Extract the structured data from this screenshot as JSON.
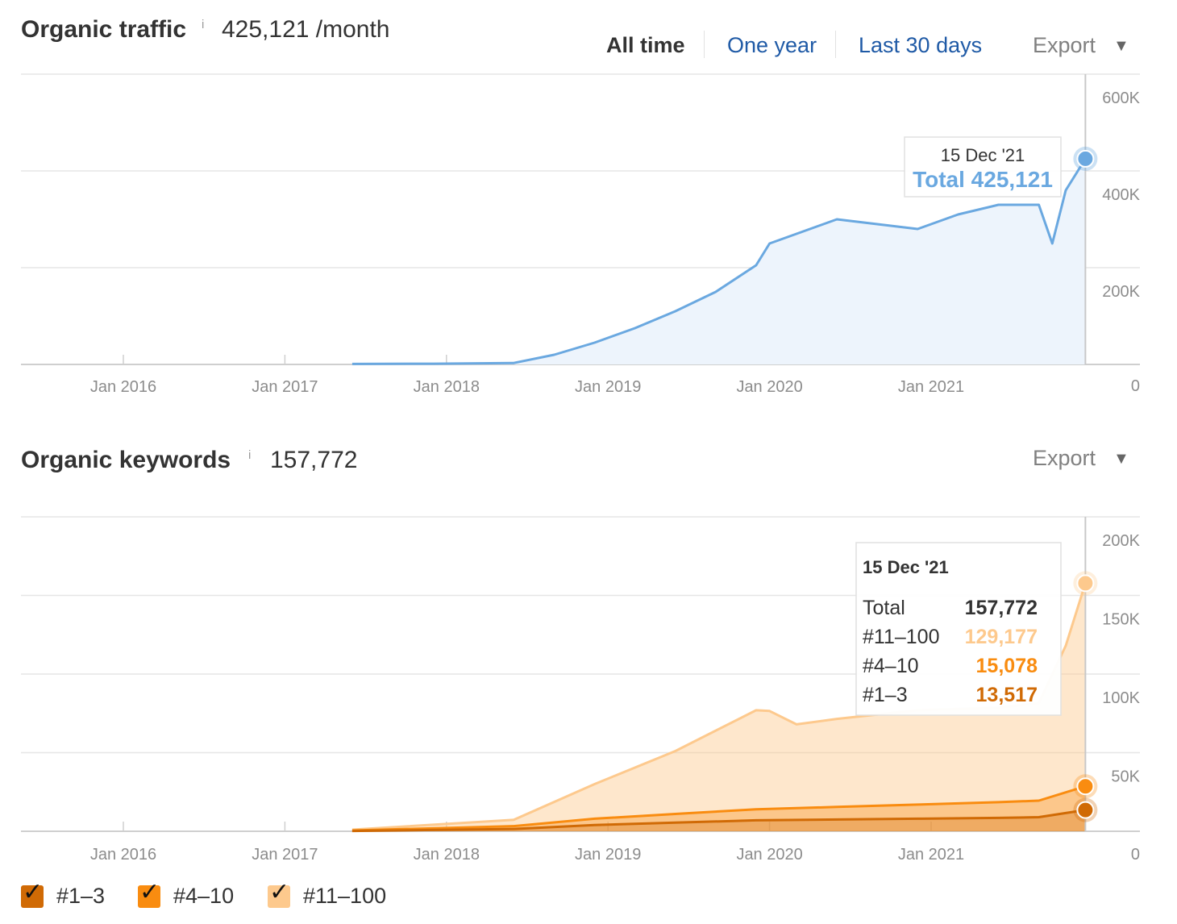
{
  "traffic": {
    "title": "Organic traffic",
    "info_mark": "i",
    "value": "425,121 /month",
    "ranges": [
      "All time",
      "One year",
      "Last 30 days"
    ],
    "active_range": "All time",
    "export_label": "Export",
    "tooltip": {
      "date": "15 Dec '21",
      "total_label": "Total 425,121"
    }
  },
  "keywords": {
    "title": "Organic keywords",
    "info_mark": "i",
    "value": "157,772",
    "export_label": "Export",
    "tooltip": {
      "date": "15 Dec '21",
      "rows": [
        {
          "label": "Total",
          "value": "157,772"
        },
        {
          "label": "#11–100",
          "value": "129,177"
        },
        {
          "label": "#4–10",
          "value": "15,078"
        },
        {
          "label": "#1–3",
          "value": "13,517"
        }
      ]
    }
  },
  "legend": [
    {
      "label": "#1–3",
      "checked": true,
      "color": "#d06a05"
    },
    {
      "label": "#4–10",
      "checked": true,
      "color": "#f98c10"
    },
    {
      "label": "#11–100",
      "checked": true,
      "color": "#fdc98d"
    }
  ],
  "colors": {
    "traffic_line": "#6aa8e0",
    "traffic_fill": "#edf4fc",
    "kw_top3": "#d06a05",
    "kw_4_10": "#f98c10",
    "kw_11_100": "#fdc98d",
    "grid": "#e6e6e6",
    "link": "#1f5aa6"
  },
  "chart_data": [
    {
      "type": "area",
      "title": "Organic traffic",
      "x_tick_labels": [
        "Jan 2016",
        "Jan 2017",
        "Jan 2018",
        "Jan 2019",
        "Jan 2020",
        "Jan 2021"
      ],
      "y_tick_labels": [
        "600K",
        "400K",
        "200K",
        "0"
      ],
      "ylim": [
        0,
        600000
      ],
      "xlim": [
        "2015-05",
        "2022-01"
      ],
      "grid": true,
      "series": [
        {
          "x": [
            "2017-06",
            "2017-12",
            "2018-06",
            "2018-09",
            "2018-12",
            "2019-03",
            "2019-06",
            "2019-09",
            "2019-12",
            "2020-01",
            "2020-03",
            "2020-06",
            "2020-09",
            "2020-12",
            "2021-03",
            "2021-06",
            "2021-09",
            "2021-10",
            "2021-11",
            "2021-12-15"
          ],
          "values": [
            1000,
            1500,
            3000,
            20000,
            45000,
            75000,
            110000,
            150000,
            205000,
            250000,
            270000,
            300000,
            290000,
            280000,
            310000,
            330000,
            330000,
            250000,
            360000,
            425121
          ]
        }
      ],
      "highlight": {
        "x": "2021-12-15",
        "y": 425121
      }
    },
    {
      "type": "area",
      "title": "Organic keywords",
      "x_tick_labels": [
        "Jan 2016",
        "Jan 2017",
        "Jan 2018",
        "Jan 2019",
        "Jan 2020",
        "Jan 2021"
      ],
      "y_tick_labels": [
        "200K",
        "150K",
        "100K",
        "50K",
        "0"
      ],
      "ylim": [
        0,
        200000
      ],
      "xlim": [
        "2015-05",
        "2022-01"
      ],
      "stacked": true,
      "grid": true,
      "series": [
        {
          "name": "#1–3",
          "x": [
            "2017-06",
            "2018-06",
            "2018-12",
            "2019-06",
            "2019-12",
            "2020-06",
            "2020-12",
            "2021-06",
            "2021-09",
            "2021-12-15"
          ],
          "values": [
            200,
            1500,
            4000,
            5500,
            7000,
            7500,
            8000,
            8500,
            9000,
            13517
          ]
        },
        {
          "name": "#4–10",
          "x": [
            "2017-06",
            "2018-06",
            "2018-12",
            "2019-06",
            "2019-12",
            "2020-06",
            "2020-12",
            "2021-06",
            "2021-09",
            "2021-12-15"
          ],
          "values": [
            300,
            1800,
            4000,
            5500,
            7000,
            8000,
            9000,
            10000,
            10500,
            15078
          ]
        },
        {
          "name": "#11–100",
          "x": [
            "2017-06",
            "2018-06",
            "2018-12",
            "2019-06",
            "2019-12",
            "2020-01",
            "2020-03",
            "2020-06",
            "2020-12",
            "2021-06",
            "2021-09",
            "2021-11",
            "2021-12-15"
          ],
          "values": [
            500,
            4000,
            22000,
            40000,
            63000,
            62000,
            53000,
            56000,
            60000,
            60000,
            62000,
            95000,
            129177
          ]
        }
      ],
      "totals": {
        "x": [
          "2017-06",
          "2018-06",
          "2018-12",
          "2019-06",
          "2019-12",
          "2020-01",
          "2020-03",
          "2020-06",
          "2020-12",
          "2021-06",
          "2021-09",
          "2021-11",
          "2021-12-15"
        ],
        "values": [
          1000,
          7300,
          30000,
          51000,
          77000,
          76500,
          68000,
          71500,
          77000,
          78500,
          81500,
          118000,
          157772
        ]
      },
      "highlight": {
        "x": "2021-12-15",
        "total": 157772,
        "#11–100": 129177,
        "#4–10": 15078,
        "#1–3": 13517
      }
    }
  ]
}
